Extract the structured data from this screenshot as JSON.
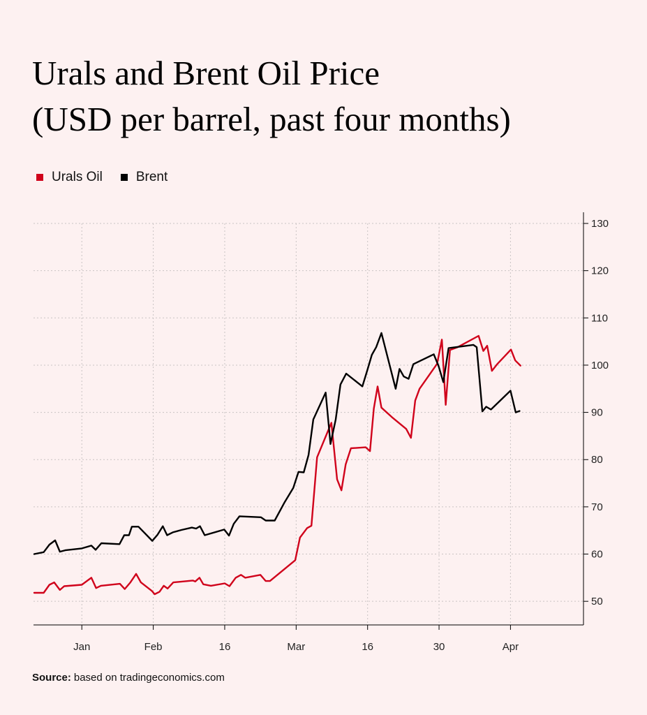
{
  "title": {
    "line1": "Urals and Brent Oil Price",
    "line2": "(USD per barrel, past four months)"
  },
  "legend": [
    {
      "label": "Urals Oil",
      "color": "#d0021b"
    },
    {
      "label": "Brent",
      "color": "#000000"
    }
  ],
  "source": {
    "label": "Source:",
    "text": "based on tradingeconomics.com"
  },
  "chart_data": {
    "type": "line",
    "title": "Urals and Brent Oil Price (USD per barrel, past four months)",
    "xlabel": "",
    "ylabel": "USD per barrel",
    "x_unit": "days since Dec 26",
    "x_range": [
      0,
      108
    ],
    "ylim": [
      45,
      130
    ],
    "y_ticks": [
      50,
      60,
      70,
      80,
      90,
      100,
      110,
      120,
      130
    ],
    "x_ticks": [
      {
        "label": "Jan",
        "x": 10
      },
      {
        "label": "Feb",
        "x": 25
      },
      {
        "label": "16",
        "x": 40
      },
      {
        "label": "Mar",
        "x": 55
      },
      {
        "label": "16",
        "x": 70
      },
      {
        "label": "30",
        "x": 85
      },
      {
        "label": "Apr",
        "x": 100
      }
    ],
    "grid": true,
    "legend_position": "top-left",
    "series": [
      {
        "name": "Urals Oil",
        "color": "#d0021b",
        "points": [
          [
            0,
            51.8
          ],
          [
            2,
            51.8
          ],
          [
            3.2,
            53.5
          ],
          [
            4.2,
            54
          ],
          [
            5.4,
            52.4
          ],
          [
            6.3,
            53.2
          ],
          [
            10,
            53.5
          ],
          [
            12,
            55
          ],
          [
            13,
            52.8
          ],
          [
            14,
            53.3
          ],
          [
            18,
            53.7
          ],
          [
            19,
            52.6
          ],
          [
            20.2,
            54
          ],
          [
            21.4,
            55.8
          ],
          [
            22.4,
            54
          ],
          [
            24.7,
            52.2
          ],
          [
            25.3,
            51.5
          ],
          [
            26.3,
            52
          ],
          [
            27.2,
            53.3
          ],
          [
            28,
            52.7
          ],
          [
            29.2,
            54
          ],
          [
            33.3,
            54.4
          ],
          [
            33.8,
            54.2
          ],
          [
            34.7,
            55
          ],
          [
            35.5,
            53.6
          ],
          [
            37.1,
            53.3
          ],
          [
            40,
            53.8
          ],
          [
            41,
            53.2
          ],
          [
            42.3,
            55
          ],
          [
            43.4,
            55.6
          ],
          [
            44.3,
            55
          ],
          [
            47.5,
            55.6
          ],
          [
            48.6,
            54.3
          ],
          [
            49.5,
            54.3
          ],
          [
            54.8,
            58.7
          ],
          [
            55.8,
            63.5
          ],
          [
            57.3,
            65.5
          ],
          [
            58.2,
            66
          ],
          [
            59.4,
            80.5
          ],
          [
            62.4,
            87.8
          ],
          [
            63.6,
            75.8
          ],
          [
            64.5,
            73.5
          ],
          [
            65.4,
            79
          ],
          [
            66.5,
            82.4
          ],
          [
            69.6,
            82.6
          ],
          [
            70.5,
            81.8
          ],
          [
            71.3,
            90.8
          ],
          [
            72.1,
            95.5
          ],
          [
            72.9,
            91
          ],
          [
            75.1,
            89
          ],
          [
            78.1,
            86.5
          ],
          [
            79.1,
            84.6
          ],
          [
            80,
            92.5
          ],
          [
            80.9,
            95
          ],
          [
            84.6,
            100.3
          ],
          [
            85.6,
            105.4
          ],
          [
            86.4,
            91.6
          ],
          [
            87.3,
            103.2
          ],
          [
            88.9,
            103.8
          ],
          [
            93.3,
            106.2
          ],
          [
            94.3,
            103
          ],
          [
            95.1,
            104.1
          ],
          [
            96.1,
            98.8
          ],
          [
            97.2,
            100.2
          ],
          [
            100.1,
            103.3
          ],
          [
            101,
            101
          ],
          [
            102.1,
            99.9
          ]
        ]
      },
      {
        "name": "Brent",
        "color": "#000000",
        "points": [
          [
            0,
            60
          ],
          [
            2,
            60.4
          ],
          [
            3.2,
            62
          ],
          [
            4.4,
            62.9
          ],
          [
            5.4,
            60.5
          ],
          [
            6.5,
            60.8
          ],
          [
            10,
            61.2
          ],
          [
            12,
            61.8
          ],
          [
            12.9,
            60.9
          ],
          [
            14.1,
            62.3
          ],
          [
            17.9,
            62.1
          ],
          [
            18.9,
            64
          ],
          [
            19.9,
            64
          ],
          [
            20.5,
            65.8
          ],
          [
            21.9,
            65.8
          ],
          [
            24.8,
            62.8
          ],
          [
            25.9,
            64.1
          ],
          [
            27,
            65.9
          ],
          [
            27.9,
            64
          ],
          [
            29.1,
            64.6
          ],
          [
            30.9,
            65.1
          ],
          [
            33.1,
            65.6
          ],
          [
            34,
            65.4
          ],
          [
            34.8,
            65.9
          ],
          [
            35.8,
            64
          ],
          [
            39.9,
            65.2
          ],
          [
            40.9,
            63.9
          ],
          [
            41.9,
            66.4
          ],
          [
            43.1,
            68
          ],
          [
            47.6,
            67.8
          ],
          [
            48.6,
            67.1
          ],
          [
            50.5,
            67.1
          ],
          [
            52.6,
            71
          ],
          [
            54.4,
            74
          ],
          [
            55.5,
            77.4
          ],
          [
            56.6,
            77.3
          ],
          [
            57.6,
            81
          ],
          [
            58.6,
            88.5
          ],
          [
            61.2,
            94.2
          ],
          [
            62.2,
            83.3
          ],
          [
            63.3,
            88.5
          ],
          [
            64.3,
            95.9
          ],
          [
            65.5,
            98.2
          ],
          [
            68.9,
            95.5
          ],
          [
            69.9,
            98.8
          ],
          [
            70.9,
            102.2
          ],
          [
            71.8,
            103.8
          ],
          [
            72.9,
            106.8
          ],
          [
            75.9,
            95
          ],
          [
            76.7,
            99.2
          ],
          [
            77.6,
            97.6
          ],
          [
            78.6,
            97.1
          ],
          [
            79.6,
            100.2
          ],
          [
            83.9,
            102.3
          ],
          [
            84.9,
            99.8
          ],
          [
            85.9,
            96.4
          ],
          [
            87,
            103.6
          ],
          [
            92.2,
            104.3
          ],
          [
            92.9,
            103.8
          ],
          [
            94.1,
            90.2
          ],
          [
            94.9,
            91.2
          ],
          [
            95.9,
            90.6
          ],
          [
            100,
            94.6
          ],
          [
            101.1,
            90
          ],
          [
            101.9,
            90.3
          ]
        ]
      }
    ]
  }
}
